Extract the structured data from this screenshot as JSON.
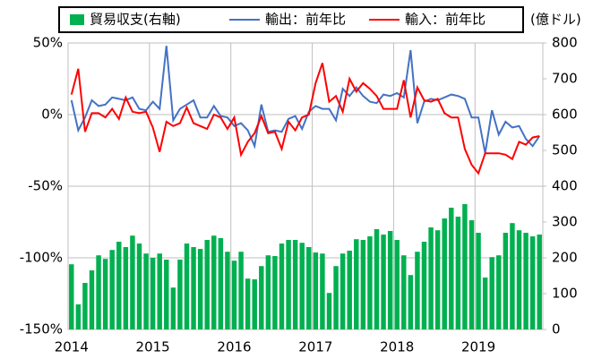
{
  "chart_data": {
    "type": "combo",
    "categories": [
      "2014",
      null,
      null,
      null,
      null,
      null,
      null,
      null,
      null,
      null,
      null,
      null,
      "2015",
      null,
      null,
      null,
      null,
      null,
      null,
      null,
      null,
      null,
      null,
      null,
      "2016",
      null,
      null,
      null,
      null,
      null,
      null,
      null,
      null,
      null,
      null,
      null,
      "2017",
      null,
      null,
      null,
      null,
      null,
      null,
      null,
      null,
      null,
      null,
      null,
      "2018",
      null,
      null,
      null,
      null,
      null,
      null,
      null,
      null,
      null,
      null,
      null,
      "2019",
      null,
      null,
      null,
      null,
      null,
      null,
      null,
      null,
      null
    ],
    "series": [
      {
        "name": "貿易収支(右軸)",
        "type": "bar",
        "axis": "y2",
        "color": "#00b050",
        "values": [
          182,
          70,
          130,
          165,
          207,
          197,
          222,
          245,
          230,
          262,
          240,
          212,
          200,
          212,
          195,
          117,
          195,
          240,
          230,
          225,
          250,
          262,
          255,
          217,
          192,
          217,
          142,
          140,
          177,
          207,
          205,
          240,
          250,
          250,
          242,
          230,
          215,
          212,
          102,
          177,
          212,
          220,
          252,
          250,
          260,
          280,
          265,
          275,
          250,
          207,
          152,
          217,
          245,
          285,
          277,
          310,
          340,
          315,
          350,
          305,
          270,
          145,
          202,
          207,
          270,
          297,
          277,
          270,
          260,
          265
        ]
      },
      {
        "name": "輸出：前年比",
        "type": "line",
        "color": "#4472c4",
        "values": [
          10,
          -11,
          -2,
          10,
          6,
          7,
          12,
          11,
          10,
          12,
          4,
          3,
          9,
          4,
          48,
          -4,
          4,
          7,
          10,
          -2,
          -2,
          6,
          -1,
          -2,
          -8,
          -6,
          -11,
          -22,
          7,
          -12,
          -11,
          -12,
          -3,
          -1,
          -10,
          2,
          6,
          4,
          4,
          -4,
          18,
          13,
          19,
          13,
          9,
          8,
          14,
          13,
          15,
          12,
          45,
          -6,
          9,
          11,
          10,
          12,
          14,
          13,
          11,
          -2,
          -2,
          -27,
          3,
          -14,
          -5,
          -9,
          -8,
          -17,
          -22,
          -15
        ]
      },
      {
        "name": "輸入：前年比",
        "type": "line",
        "color": "#ff0000",
        "values": [
          14,
          32,
          -12,
          1,
          1,
          -2,
          4,
          -3,
          12,
          2,
          1,
          2,
          -9,
          -26,
          -5,
          -8,
          -6,
          5,
          -6,
          -8,
          -10,
          0,
          -2,
          -10,
          -2,
          -28,
          -19,
          -13,
          -1,
          -13,
          -12,
          -24,
          -5,
          -11,
          -2,
          0,
          22,
          36,
          9,
          13,
          2,
          25,
          16,
          22,
          18,
          13,
          4,
          4,
          4,
          24,
          -2,
          19,
          10,
          9,
          11,
          1,
          -2,
          -2,
          -24,
          -35,
          -41,
          -27,
          -27,
          -27,
          -28,
          -31,
          -19,
          -21,
          -16,
          -15
        ]
      }
    ],
    "ylim": [
      -150,
      50
    ],
    "yticks": [
      {
        "value": -150,
        "label": "-150%"
      },
      {
        "value": -100,
        "label": "-100%"
      },
      {
        "value": -50,
        "label": "-50%"
      },
      {
        "value": 0,
        "label": "0%"
      },
      {
        "value": 50,
        "label": "50%"
      }
    ],
    "y2lim": [
      0,
      800
    ],
    "y2ticks": [
      0,
      100,
      200,
      300,
      400,
      500,
      600,
      700,
      800
    ],
    "y2_label": "(億ドル)",
    "grid": true
  }
}
